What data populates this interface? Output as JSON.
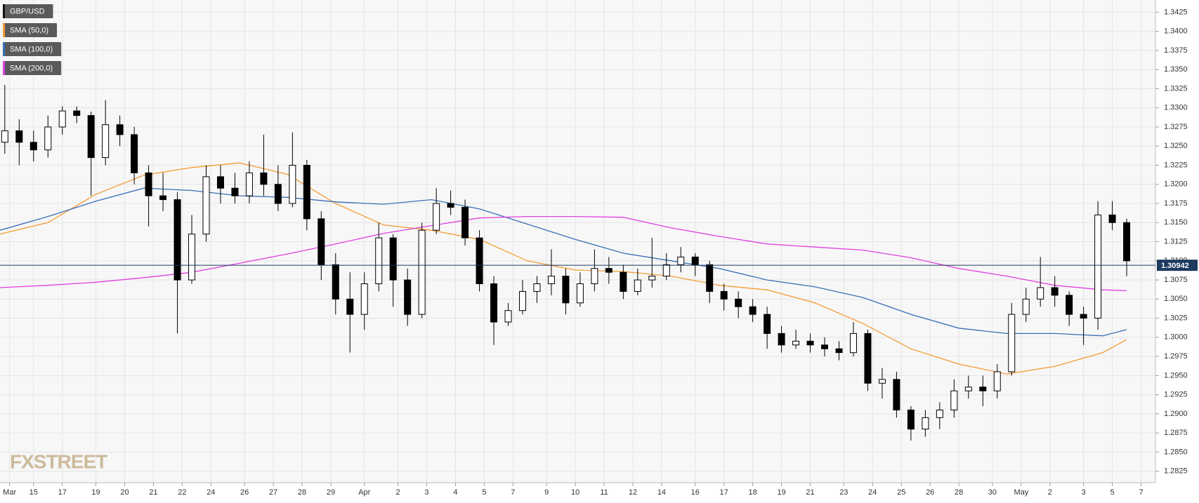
{
  "chart_data": {
    "type": "candlestick",
    "xlim": [
      0,
      241
    ],
    "ylim": [
      1.281,
      1.3441
    ],
    "grid": true,
    "legend": "top-left",
    "watermark": "FXSTREET",
    "last_price": 1.30942,
    "last_price_color": "#1e3a5f",
    "xticks": [
      {
        "value": 2,
        "label": "Mar"
      },
      {
        "value": 7,
        "label": "15"
      },
      {
        "value": 13,
        "label": "17"
      },
      {
        "value": 20,
        "label": "19"
      },
      {
        "value": 26,
        "label": "20"
      },
      {
        "value": 32,
        "label": "21"
      },
      {
        "value": 38,
        "label": "22"
      },
      {
        "value": 44,
        "label": "24"
      },
      {
        "value": 51,
        "label": "26"
      },
      {
        "value": 57,
        "label": "27"
      },
      {
        "value": 63,
        "label": "28"
      },
      {
        "value": 69,
        "label": "29"
      },
      {
        "value": 76,
        "label": "Apr"
      },
      {
        "value": 83,
        "label": "2"
      },
      {
        "value": 89,
        "label": "3"
      },
      {
        "value": 95,
        "label": "4"
      },
      {
        "value": 101,
        "label": "5"
      },
      {
        "value": 107,
        "label": "7"
      },
      {
        "value": 114,
        "label": "9"
      },
      {
        "value": 120,
        "label": "10"
      },
      {
        "value": 126,
        "label": "11"
      },
      {
        "value": 132,
        "label": "12"
      },
      {
        "value": 138,
        "label": "14"
      },
      {
        "value": 145,
        "label": "16"
      },
      {
        "value": 151,
        "label": "17"
      },
      {
        "value": 157,
        "label": "18"
      },
      {
        "value": 163,
        "label": "19"
      },
      {
        "value": 169,
        "label": "21"
      },
      {
        "value": 176,
        "label": "23"
      },
      {
        "value": 182,
        "label": "24"
      },
      {
        "value": 188,
        "label": "25"
      },
      {
        "value": 194,
        "label": "26"
      },
      {
        "value": 200,
        "label": "28"
      },
      {
        "value": 207,
        "label": "30"
      },
      {
        "value": 213,
        "label": "May"
      },
      {
        "value": 219,
        "label": "2"
      },
      {
        "value": 226,
        "label": "3"
      },
      {
        "value": 232,
        "label": "5"
      },
      {
        "value": 238,
        "label": "7"
      }
    ],
    "yticks": [
      1.2825,
      {
        "value": 1.285,
        "label": "1.2850"
      },
      1.2875,
      {
        "value": 1.29,
        "label": "1.2900"
      },
      1.2925,
      {
        "value": 1.295,
        "label": "1.2950"
      },
      1.2975,
      {
        "value": 1.3,
        "label": "1.3000"
      },
      1.3025,
      {
        "value": 1.305,
        "label": "1.3050"
      },
      1.3075,
      {
        "value": 1.31,
        "label": "1.3100"
      },
      1.3125,
      {
        "value": 1.315,
        "label": "1.3150"
      },
      1.3175,
      {
        "value": 1.32,
        "label": "1.3200"
      },
      1.3225,
      {
        "value": 1.325,
        "label": "1.3250"
      },
      1.3275,
      {
        "value": 1.33,
        "label": "1.3300"
      },
      1.3325,
      {
        "value": 1.335,
        "label": "1.3350"
      },
      1.3375,
      {
        "value": 1.34,
        "label": "1.3400"
      },
      1.3425
    ],
    "series": [
      {
        "name": "GBP/USD",
        "type": "candlestick",
        "color": "#000000",
        "x": [
          1,
          4,
          7,
          10,
          13,
          16,
          19,
          22,
          25,
          28,
          31,
          34,
          37,
          40,
          43,
          46,
          49,
          52,
          55,
          58,
          61,
          64,
          67,
          70,
          73,
          76,
          79,
          82,
          85,
          88,
          91,
          94,
          97,
          100,
          103,
          106,
          109,
          112,
          115,
          118,
          121,
          124,
          127,
          130,
          133,
          136,
          139,
          142,
          145,
          148,
          151,
          154,
          157,
          160,
          163,
          166,
          169,
          172,
          175,
          178,
          181,
          184,
          187,
          190,
          193,
          196,
          199,
          202,
          205,
          208,
          211,
          214,
          217,
          220,
          223,
          226,
          229,
          232,
          235
        ],
        "open": [
          1.3255,
          1.327,
          1.3255,
          1.3245,
          1.3275,
          1.3296,
          1.329,
          1.3235,
          1.3278,
          1.3265,
          1.3215,
          1.3185,
          1.318,
          1.3075,
          1.3135,
          1.321,
          1.3195,
          1.3185,
          1.3215,
          1.32,
          1.3175,
          1.3225,
          1.3155,
          1.3095,
          1.305,
          1.303,
          1.307,
          1.313,
          1.3075,
          1.303,
          1.314,
          1.3175,
          1.317,
          1.313,
          1.307,
          1.302,
          1.3035,
          1.306,
          1.307,
          1.308,
          1.3045,
          1.307,
          1.309,
          1.3085,
          1.306,
          1.3075,
          1.308,
          1.3095,
          1.3105,
          1.3095,
          1.306,
          1.305,
          1.304,
          1.303,
          1.3005,
          1.299,
          1.2995,
          1.299,
          1.2985,
          1.298,
          1.3005,
          1.294,
          1.2945,
          1.2905,
          1.288,
          1.2895,
          1.2905,
          1.293,
          1.2935,
          1.293,
          1.2955,
          1.303,
          1.305,
          1.3065,
          1.3055,
          1.303,
          1.3025,
          1.316,
          1.315
        ],
        "high": [
          1.333,
          1.3285,
          1.327,
          1.329,
          1.3302,
          1.3302,
          1.3295,
          1.331,
          1.329,
          1.3275,
          1.3225,
          1.3215,
          1.319,
          1.316,
          1.3225,
          1.3225,
          1.3215,
          1.323,
          1.3265,
          1.3225,
          1.3268,
          1.3232,
          1.3165,
          1.311,
          1.3085,
          1.3085,
          1.315,
          1.3135,
          1.309,
          1.315,
          1.3195,
          1.3192,
          1.318,
          1.314,
          1.308,
          1.3045,
          1.3075,
          1.308,
          1.3115,
          1.309,
          1.3085,
          1.3115,
          1.3105,
          1.3095,
          1.309,
          1.313,
          1.311,
          1.3118,
          1.311,
          1.31,
          1.307,
          1.306,
          1.305,
          1.304,
          1.3015,
          1.301,
          1.3005,
          1.3,
          1.2995,
          1.302,
          1.301,
          1.296,
          1.2955,
          1.291,
          1.2905,
          1.2915,
          1.2945,
          1.295,
          1.295,
          1.2965,
          1.3045,
          1.3065,
          1.3105,
          1.308,
          1.306,
          1.304,
          1.3178,
          1.3178,
          1.3155
        ],
        "low": [
          1.324,
          1.3225,
          1.323,
          1.3235,
          1.3265,
          1.328,
          1.3185,
          1.3225,
          1.325,
          1.32,
          1.3145,
          1.3165,
          1.3005,
          1.307,
          1.3125,
          1.3175,
          1.3175,
          1.3175,
          1.3185,
          1.3165,
          1.317,
          1.314,
          1.3075,
          1.303,
          1.298,
          1.301,
          1.306,
          1.304,
          1.3015,
          1.3025,
          1.3135,
          1.316,
          1.312,
          1.306,
          1.299,
          1.3015,
          1.303,
          1.3045,
          1.3055,
          1.303,
          1.304,
          1.306,
          1.307,
          1.305,
          1.3055,
          1.3065,
          1.3075,
          1.3085,
          1.308,
          1.3045,
          1.3035,
          1.3025,
          1.302,
          1.2985,
          1.298,
          1.2985,
          1.298,
          1.2975,
          1.297,
          1.2975,
          1.293,
          1.292,
          1.2895,
          1.2865,
          1.287,
          1.288,
          1.2895,
          1.292,
          1.291,
          1.292,
          1.295,
          1.302,
          1.304,
          1.304,
          1.3015,
          1.299,
          1.301,
          1.314,
          1.308
        ],
        "close": [
          1.327,
          1.3255,
          1.3245,
          1.3275,
          1.3296,
          1.329,
          1.3235,
          1.3278,
          1.3265,
          1.3215,
          1.3185,
          1.318,
          1.3075,
          1.3135,
          1.321,
          1.3195,
          1.3185,
          1.3215,
          1.32,
          1.3175,
          1.3225,
          1.3155,
          1.3095,
          1.305,
          1.303,
          1.307,
          1.313,
          1.3075,
          1.303,
          1.314,
          1.3175,
          1.317,
          1.313,
          1.307,
          1.302,
          1.3035,
          1.306,
          1.307,
          1.308,
          1.3045,
          1.307,
          1.309,
          1.3085,
          1.306,
          1.3075,
          1.308,
          1.3095,
          1.3105,
          1.3095,
          1.306,
          1.305,
          1.304,
          1.303,
          1.3005,
          1.299,
          1.2995,
          1.299,
          1.2985,
          1.298,
          1.3005,
          1.294,
          1.2945,
          1.2905,
          1.288,
          1.2895,
          1.2905,
          1.293,
          1.2935,
          1.293,
          1.2955,
          1.303,
          1.305,
          1.3065,
          1.3055,
          1.303,
          1.3025,
          1.316,
          1.315,
          1.31
        ]
      },
      {
        "name": "SMA (50,0)",
        "type": "line",
        "color": "#f39c34",
        "x": [
          0,
          10,
          20,
          30,
          40,
          50,
          60,
          70,
          80,
          90,
          100,
          110,
          120,
          130,
          140,
          150,
          160,
          170,
          180,
          190,
          200,
          210,
          220,
          230,
          235
        ],
        "values": [
          1.3135,
          1.315,
          1.3187,
          1.3212,
          1.3222,
          1.3228,
          1.3213,
          1.3175,
          1.3147,
          1.314,
          1.3128,
          1.31,
          1.3088,
          1.3086,
          1.308,
          1.3068,
          1.3062,
          1.3045,
          1.3018,
          1.2985,
          1.2965,
          1.2952,
          1.2962,
          1.298,
          1.2997
        ]
      },
      {
        "name": "SMA (100,0)",
        "type": "line",
        "color": "#3a6fb5",
        "x": [
          0,
          10,
          20,
          30,
          40,
          50,
          60,
          70,
          80,
          90,
          100,
          110,
          120,
          130,
          140,
          150,
          160,
          170,
          180,
          190,
          200,
          210,
          220,
          230,
          235
        ],
        "values": [
          1.314,
          1.3158,
          1.3178,
          1.3195,
          1.3192,
          1.3185,
          1.3183,
          1.3177,
          1.3174,
          1.318,
          1.3168,
          1.3148,
          1.3128,
          1.311,
          1.31,
          1.309,
          1.3075,
          1.3066,
          1.3052,
          1.303,
          1.3012,
          1.3005,
          1.3005,
          1.3002,
          1.301
        ]
      },
      {
        "name": "SMA (200,0)",
        "type": "line",
        "color": "#e040e0",
        "x": [
          0,
          10,
          20,
          30,
          40,
          50,
          60,
          70,
          80,
          90,
          100,
          110,
          120,
          130,
          140,
          150,
          160,
          170,
          180,
          190,
          200,
          210,
          220,
          230,
          235
        ],
        "values": [
          1.3065,
          1.3068,
          1.3072,
          1.3078,
          1.3085,
          1.3097,
          1.3109,
          1.3122,
          1.3136,
          1.3146,
          1.3156,
          1.3158,
          1.3158,
          1.3157,
          1.3143,
          1.3132,
          1.3122,
          1.3118,
          1.3114,
          1.3104,
          1.309,
          1.308,
          1.3068,
          1.3062,
          1.3061
        ]
      }
    ]
  }
}
